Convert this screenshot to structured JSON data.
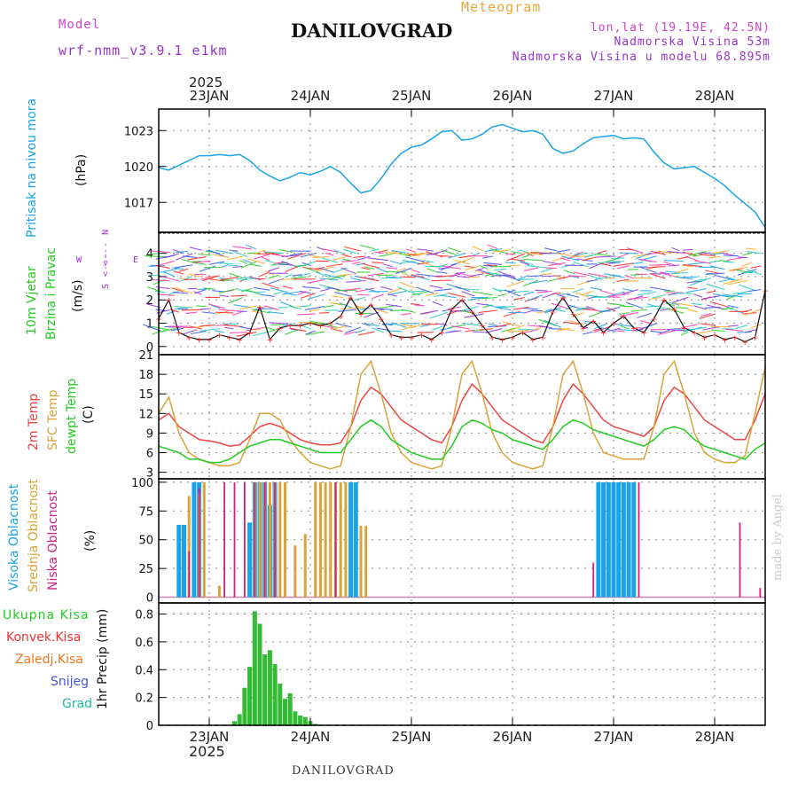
{
  "header": {
    "model_label": "Model",
    "model_name": "wrf-nmm_v3.9.1 e1km",
    "title": "DANILOVGRAD",
    "meteogram_label": "Meteogram",
    "lonlat": "lon,lat (19.19E, 42.5N)",
    "elevation": "Nadmorska Visina 53m",
    "model_elevation": "Nadmorska Visina u modelu 68.895m",
    "footer_title": "DANILOVGRAD",
    "credit": "made by Angel"
  },
  "colors": {
    "pressure": "#1aa3e8",
    "temp2m": "#ee4444",
    "sfc_temp": "#d9a43a",
    "dewpt": "#22cc22",
    "high_cloud": "#1aa3e8",
    "mid_cloud": "#d9a43a",
    "low_cloud": "#cc2288",
    "precip": "#33bb33",
    "label_pink": "#cc44cc",
    "label_violet": "#9933cc",
    "label_orange": "#e8a63a"
  },
  "chart_data": [
    {
      "type": "line",
      "panel": "pressure",
      "ylabel_main": "Pritisak na nivou mora",
      "ylabel_unit": "(hPa)",
      "ylim": [
        1014.5,
        1024.8
      ],
      "yticks": [
        1017,
        1020,
        1023
      ],
      "x": [
        22.5,
        22.6,
        22.7,
        22.8,
        22.9,
        23.0,
        23.1,
        23.2,
        23.3,
        23.4,
        23.5,
        23.6,
        23.7,
        23.8,
        23.9,
        24.0,
        24.1,
        24.2,
        24.3,
        24.4,
        24.5,
        24.6,
        24.7,
        24.8,
        24.9,
        25.0,
        25.1,
        25.2,
        25.3,
        25.4,
        25.5,
        25.6,
        25.7,
        25.8,
        25.9,
        26.0,
        26.1,
        26.2,
        26.3,
        26.4,
        26.5,
        26.6,
        26.7,
        26.8,
        26.9,
        27.0,
        27.1,
        27.2,
        27.3,
        27.4,
        27.5,
        27.6,
        27.7,
        27.8,
        27.9,
        28.0,
        28.1,
        28.2,
        28.3,
        28.4,
        28.5
      ],
      "values": [
        1019.9,
        1019.7,
        1020.1,
        1020.5,
        1020.9,
        1020.9,
        1021.0,
        1020.9,
        1021.0,
        1020.5,
        1019.7,
        1019.2,
        1018.8,
        1019.1,
        1019.5,
        1019.3,
        1019.6,
        1020.0,
        1019.5,
        1018.6,
        1017.8,
        1018.0,
        1019.0,
        1020.2,
        1021.1,
        1021.6,
        1021.8,
        1022.3,
        1022.9,
        1023.0,
        1022.2,
        1022.3,
        1022.7,
        1023.3,
        1023.5,
        1023.2,
        1022.9,
        1023.0,
        1022.7,
        1021.5,
        1021.1,
        1021.3,
        1021.9,
        1022.4,
        1022.5,
        1022.6,
        1022.3,
        1022.4,
        1022.3,
        1021.2,
        1020.3,
        1019.8,
        1019.9,
        1020.0,
        1019.5,
        1019.0,
        1018.4,
        1017.6,
        1016.9,
        1016.2,
        1014.9
      ]
    },
    {
      "type": "line",
      "panel": "wind",
      "ylabel_main": "10m Vjetar",
      "ylabel_sub": "Brzina i Pravac",
      "ylabel_unit": "(m/s)",
      "compass_ns": "<--- N",
      "compass_sn": "S <---",
      "compass_w": "W",
      "compass_e": "E",
      "ylim": [
        -0.35,
        4.9
      ],
      "yticks": [
        0,
        1,
        2,
        3,
        4
      ],
      "x": [
        22.5,
        22.6,
        22.7,
        22.8,
        22.9,
        23.0,
        23.1,
        23.2,
        23.3,
        23.4,
        23.5,
        23.6,
        23.7,
        23.8,
        23.9,
        24.0,
        24.1,
        24.2,
        24.3,
        24.4,
        24.5,
        24.6,
        24.7,
        24.8,
        24.9,
        25.0,
        25.1,
        25.2,
        25.3,
        25.4,
        25.5,
        25.6,
        25.7,
        25.8,
        25.9,
        26.0,
        26.1,
        26.2,
        26.3,
        26.4,
        26.5,
        26.6,
        26.7,
        26.8,
        26.9,
        27.0,
        27.1,
        27.2,
        27.3,
        27.4,
        27.5,
        27.6,
        27.7,
        27.8,
        27.9,
        28.0,
        28.1,
        28.2,
        28.3,
        28.4,
        28.5
      ],
      "values": [
        1.2,
        2.0,
        0.6,
        0.4,
        0.3,
        0.3,
        0.5,
        0.4,
        0.3,
        0.6,
        1.7,
        0.3,
        0.8,
        0.9,
        0.9,
        1.0,
        0.9,
        1.0,
        1.3,
        2.1,
        1.4,
        1.8,
        1.2,
        0.5,
        0.4,
        0.4,
        0.5,
        0.3,
        0.6,
        1.6,
        2.0,
        1.5,
        0.9,
        0.4,
        0.3,
        0.4,
        0.6,
        0.3,
        0.4,
        1.5,
        2.1,
        1.4,
        0.8,
        1.1,
        0.6,
        1.0,
        1.3,
        0.8,
        0.6,
        1.2,
        2.0,
        1.6,
        0.8,
        0.6,
        0.4,
        0.5,
        0.3,
        0.4,
        0.2,
        0.4,
        2.4
      ]
    },
    {
      "type": "line",
      "panel": "temperature",
      "ylabel_a": "2m Temp",
      "ylabel_b": "SFC Temp",
      "ylabel_c": "dewpt Temp",
      "ylabel_unit": "(C)",
      "ylim": [
        2,
        21
      ],
      "yticks": [
        3,
        6,
        9,
        12,
        15,
        18,
        21
      ],
      "x": [
        22.5,
        22.6,
        22.7,
        22.8,
        22.9,
        23.0,
        23.1,
        23.2,
        23.3,
        23.4,
        23.5,
        23.6,
        23.7,
        23.8,
        23.9,
        24.0,
        24.1,
        24.2,
        24.3,
        24.4,
        24.5,
        24.6,
        24.7,
        24.8,
        24.9,
        25.0,
        25.1,
        25.2,
        25.3,
        25.4,
        25.5,
        25.6,
        25.7,
        25.8,
        25.9,
        26.0,
        26.1,
        26.2,
        26.3,
        26.4,
        26.5,
        26.6,
        26.7,
        26.8,
        26.9,
        27.0,
        27.1,
        27.2,
        27.3,
        27.4,
        27.5,
        27.6,
        27.7,
        27.8,
        27.9,
        28.0,
        28.1,
        28.2,
        28.3,
        28.4,
        28.5
      ],
      "series": [
        {
          "name": "2m Temp",
          "values": [
            11,
            12,
            10,
            9,
            8,
            7.8,
            7.5,
            7,
            7.2,
            8.5,
            10,
            10.5,
            10,
            9,
            8,
            7.5,
            7.2,
            7.2,
            7.5,
            10,
            14,
            16,
            15,
            13,
            11,
            10,
            9,
            8,
            7.5,
            10,
            14,
            16.5,
            15,
            13,
            11,
            10,
            9,
            8,
            7.5,
            10,
            14,
            16.5,
            15,
            13,
            11,
            10,
            9.5,
            9,
            8.5,
            10,
            14,
            16,
            15,
            13,
            11,
            10,
            9,
            8,
            8,
            11,
            15
          ]
        },
        {
          "name": "SFC Temp",
          "values": [
            12,
            14.5,
            9,
            6,
            5,
            4.5,
            4,
            4,
            4.5,
            8,
            12,
            12,
            11,
            8,
            6,
            4.5,
            4,
            3.5,
            4,
            10,
            18,
            20,
            15,
            9,
            6,
            4.5,
            4,
            3.5,
            4,
            10,
            18,
            20,
            15,
            9,
            6,
            4.5,
            4,
            3.5,
            4,
            10,
            18,
            20,
            15,
            9,
            6,
            5.5,
            5,
            5,
            5,
            10,
            18,
            20,
            15,
            9,
            6,
            5,
            4.5,
            4.5,
            5.5,
            12,
            19
          ]
        },
        {
          "name": "dewpt Temp",
          "values": [
            7,
            6.5,
            6,
            5,
            5,
            4.5,
            4.5,
            5,
            6,
            7,
            7.5,
            8,
            8,
            7.5,
            7,
            6.5,
            6,
            6,
            6,
            8,
            10,
            11,
            10,
            8,
            7,
            6,
            5.5,
            5,
            5,
            7,
            10,
            11,
            10.5,
            9.5,
            9,
            8,
            7.5,
            7,
            6.5,
            8,
            10,
            11,
            10.5,
            9.5,
            9,
            8.5,
            8,
            7.5,
            7,
            8,
            9.5,
            10,
            9.5,
            8,
            7,
            6.5,
            6,
            5.5,
            5,
            6.5,
            7.5
          ]
        }
      ]
    },
    {
      "type": "bar",
      "panel": "clouds",
      "ylabel_a": "Visoka Oblacnost",
      "ylabel_b": "Srednja Oblacnost",
      "ylabel_c": "Niska Oblacnost",
      "ylabel_unit": "(%)",
      "ylim": [
        -5,
        103
      ],
      "yticks": [
        0,
        25,
        50,
        75,
        100
      ],
      "series": [
        {
          "name": "Visoka Oblacnost",
          "x": [
            22.7,
            22.75,
            22.85,
            22.9,
            23.4,
            23.45,
            23.5,
            23.55,
            23.6,
            23.65,
            24.4,
            24.45,
            26.85,
            26.9,
            26.95,
            27.0,
            27.05,
            27.1,
            27.15,
            27.2
          ],
          "values": [
            63,
            63,
            100,
            100,
            65,
            100,
            100,
            100,
            80,
            100,
            100,
            100,
            100,
            100,
            100,
            100,
            100,
            100,
            100,
            100
          ]
        },
        {
          "name": "Srednja Oblacnost",
          "x": [
            22.8,
            22.9,
            22.95,
            23.1,
            23.45,
            23.5,
            23.55,
            23.6,
            23.65,
            23.7,
            23.75,
            23.85,
            23.95,
            24.05,
            24.1,
            24.15,
            24.2,
            24.25,
            24.3,
            24.35,
            24.5,
            24.55
          ],
          "values": [
            88,
            90,
            100,
            10,
            100,
            100,
            100,
            100,
            100,
            100,
            100,
            45,
            55,
            100,
            100,
            100,
            100,
            100,
            100,
            100,
            62,
            62
          ]
        },
        {
          "name": "Niska Oblacnost",
          "x": [
            22.8,
            22.9,
            23.15,
            23.25,
            23.35,
            23.45,
            23.55,
            23.65,
            24.25,
            26.8,
            27.25,
            28.25,
            28.45
          ],
          "values": [
            40,
            95,
            100,
            100,
            100,
            100,
            100,
            100,
            100,
            30,
            100,
            65,
            8
          ]
        }
      ]
    },
    {
      "type": "bar",
      "panel": "precipitation",
      "legend_total": "Ukupna Kisa",
      "legend_convective": "Konvek.Kisa",
      "legend_freezing": "Zaledj.Kisa",
      "legend_snow": "Snijeg",
      "legend_hail": "Grad",
      "ylabel_unit": "1hr Precip (mm)",
      "ylim": [
        0,
        0.88
      ],
      "yticks": [
        0,
        0.2,
        0.4,
        0.6,
        0.8
      ],
      "x": [
        23.25,
        23.3,
        23.35,
        23.4,
        23.45,
        23.5,
        23.55,
        23.6,
        23.65,
        23.7,
        23.75,
        23.8,
        23.85,
        23.9,
        23.95,
        24.0,
        24.05
      ],
      "values": [
        0.03,
        0.08,
        0.27,
        0.42,
        0.82,
        0.73,
        0.51,
        0.54,
        0.44,
        0.3,
        0.19,
        0.23,
        0.1,
        0.07,
        0.06,
        0.03,
        0.01
      ]
    }
  ],
  "x_axis": {
    "year": "2025",
    "ticks": [
      {
        "x": 23,
        "label": "23JAN"
      },
      {
        "x": 24,
        "label": "24JAN"
      },
      {
        "x": 25,
        "label": "25JAN"
      },
      {
        "x": 26,
        "label": "26JAN"
      },
      {
        "x": 27,
        "label": "27JAN"
      },
      {
        "x": 28,
        "label": "28JAN"
      }
    ],
    "xlim": [
      22.5,
      28.5
    ]
  }
}
